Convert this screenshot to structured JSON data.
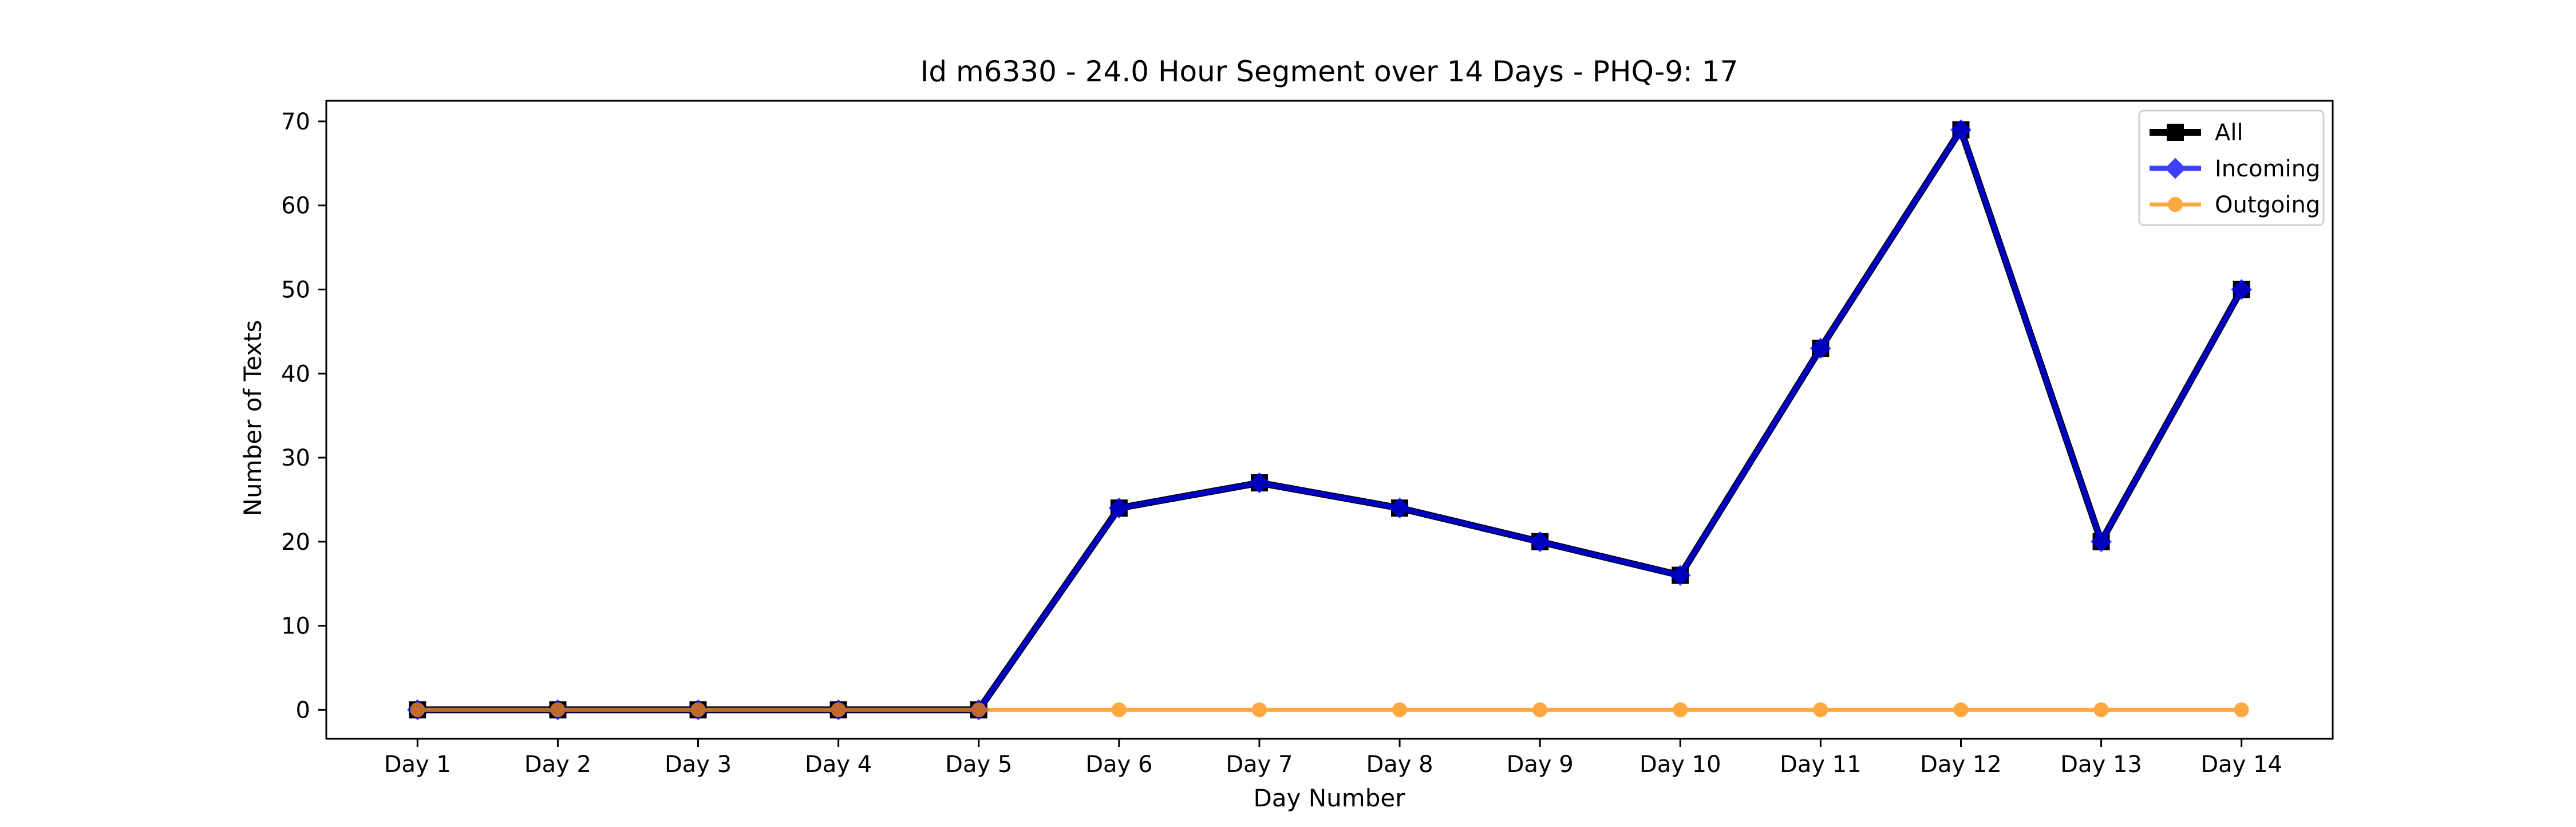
{
  "chart_data": {
    "type": "line",
    "title": "Id m6330 - 24.0 Hour Segment over 14 Days - PHQ-9: 17",
    "xlabel": "Day Number",
    "ylabel": "Number of Texts",
    "categories": [
      "Day 1",
      "Day 2",
      "Day 3",
      "Day 4",
      "Day 5",
      "Day 6",
      "Day 7",
      "Day 8",
      "Day 9",
      "Day 10",
      "Day 11",
      "Day 12",
      "Day 13",
      "Day 14"
    ],
    "ylim": [
      -3.45,
      72.45
    ],
    "yticks": [
      0,
      10,
      20,
      30,
      40,
      50,
      60,
      70
    ],
    "grid": false,
    "legend_position": "upper right",
    "series": [
      {
        "name": "All",
        "color": "#000000",
        "marker": "square",
        "values": [
          0,
          0,
          0,
          0,
          0,
          24,
          27,
          24,
          20,
          16,
          43,
          69,
          20,
          50
        ]
      },
      {
        "name": "Incoming",
        "color": "#0000ff",
        "marker": "diamond",
        "values": [
          0,
          0,
          0,
          0,
          0,
          24,
          27,
          24,
          20,
          16,
          43,
          69,
          20,
          50
        ]
      },
      {
        "name": "Outgoing",
        "color": "#ff8c00",
        "marker": "circle",
        "values": [
          0,
          0,
          0,
          0,
          0,
          0,
          0,
          0,
          0,
          0,
          0,
          0,
          0,
          0
        ]
      }
    ]
  }
}
